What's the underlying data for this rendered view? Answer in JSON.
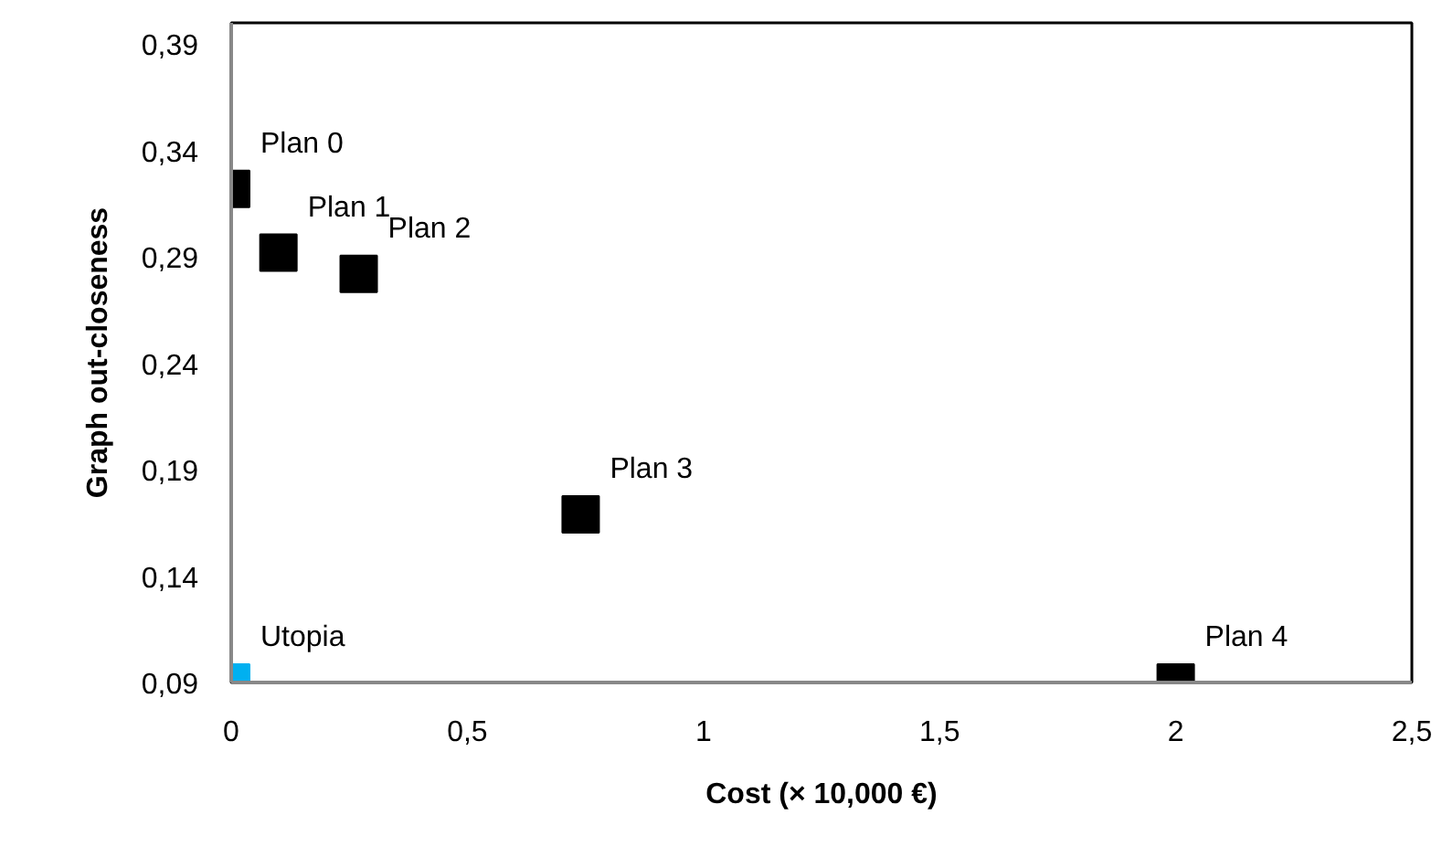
{
  "chart_data": {
    "type": "scatter",
    "xlabel": "Cost (× 10,000 €)",
    "ylabel": "Graph out-closeness",
    "xlim": [
      0,
      2.5
    ],
    "ylim": [
      0.09,
      0.4
    ],
    "xticks": [
      {
        "value": 0,
        "label": "0"
      },
      {
        "value": 0.5,
        "label": "0,5"
      },
      {
        "value": 1,
        "label": "1"
      },
      {
        "value": 1.5,
        "label": "1,5"
      },
      {
        "value": 2,
        "label": "2"
      },
      {
        "value": 2.5,
        "label": "2,5"
      }
    ],
    "yticks": [
      {
        "value": 0.09,
        "label": "0,09"
      },
      {
        "value": 0.14,
        "label": "0,14"
      },
      {
        "value": 0.19,
        "label": "0,19"
      },
      {
        "value": 0.24,
        "label": "0,24"
      },
      {
        "value": 0.29,
        "label": "0,29"
      },
      {
        "value": 0.34,
        "label": "0,34"
      },
      {
        "value": 0.39,
        "label": "0,39"
      }
    ],
    "marker": "square",
    "grid": false,
    "series": [
      {
        "color": "#000000",
        "x": [
          0,
          0.1,
          0.27,
          0.74,
          2.0
        ],
        "values": [
          0.322,
          0.292,
          0.282,
          0.169,
          0.09
        ]
      },
      {
        "color": "#00b0f0",
        "x": [
          0
        ],
        "values": [
          0.09
        ]
      }
    ],
    "annotations": [
      {
        "text": "Plan 0",
        "x": 0,
        "y": 0.322
      },
      {
        "text": "Plan 1",
        "x": 0.1,
        "y": 0.292
      },
      {
        "text": "Plan 2",
        "x": 0.27,
        "y": 0.282
      },
      {
        "text": "Plan 3",
        "x": 0.74,
        "y": 0.169
      },
      {
        "text": "Plan 4",
        "x": 2.0,
        "y": 0.09
      },
      {
        "text": "Utopia",
        "x": 0,
        "y": 0.09
      }
    ]
  }
}
